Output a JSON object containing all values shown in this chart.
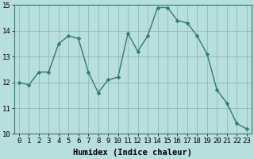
{
  "x": [
    0,
    1,
    2,
    3,
    4,
    5,
    6,
    7,
    8,
    9,
    10,
    11,
    12,
    13,
    14,
    15,
    16,
    17,
    18,
    19,
    20,
    21,
    22,
    23
  ],
  "y": [
    12.0,
    11.9,
    12.4,
    12.4,
    13.5,
    13.8,
    13.7,
    12.4,
    11.6,
    12.1,
    12.2,
    13.9,
    13.2,
    13.8,
    14.9,
    14.9,
    14.4,
    14.3,
    13.8,
    13.1,
    11.7,
    11.2,
    10.4,
    10.2
  ],
  "line_color": "#2e7d6e",
  "marker_color": "#2e7d6e",
  "bg_color": "#b8dede",
  "grid_color": "#8fbcbc",
  "xlabel": "Humidex (Indice chaleur)",
  "xlabel_fontsize": 7.5,
  "tick_fontsize": 6.5,
  "ylim": [
    10,
    15
  ],
  "xlim": [
    -0.5,
    23.5
  ],
  "yticks": [
    10,
    11,
    12,
    13,
    14,
    15
  ],
  "xticks": [
    0,
    1,
    2,
    3,
    4,
    5,
    6,
    7,
    8,
    9,
    10,
    11,
    12,
    13,
    14,
    15,
    16,
    17,
    18,
    19,
    20,
    21,
    22,
    23
  ],
  "linewidth": 1.0,
  "markersize": 2.5
}
